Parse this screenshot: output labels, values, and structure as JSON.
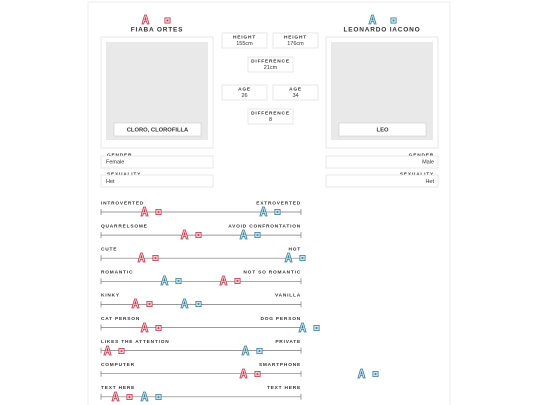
{
  "characters": [
    {
      "name": "FIABA ORTES",
      "image_caption": "CLORO, CLOROFILLA",
      "gender_label": "GENDER",
      "gender": "Female",
      "sexuality_label": "SEXUALITY",
      "sexuality": "Het"
    },
    {
      "name": "LEONARDO IACONO",
      "image_caption": "LEO",
      "gender_label": "GENDER",
      "gender": "Male",
      "sexuality_label": "SEXUALITY",
      "sexuality": "Het"
    }
  ],
  "comparison": {
    "height": [
      {
        "label": "HEIGHT",
        "value": "155cm"
      },
      {
        "label": "HEIGHT",
        "value": "176cm"
      }
    ],
    "height_difference": {
      "label": "DIFFERENCE",
      "value": "21cm"
    },
    "age": [
      {
        "label": "AGE",
        "value": "26"
      },
      {
        "label": "AGE",
        "value": "34"
      }
    ],
    "age_difference": {
      "label": "DIFFERENCE",
      "value": "8"
    }
  },
  "scales": [
    {
      "left": "INTROVERTED",
      "right": "EXTROVERTED"
    },
    {
      "left": "QUARRELSOME",
      "right": "AVOID CONFRONTATION"
    },
    {
      "left": "CUTE",
      "right": "HOT"
    },
    {
      "left": "ROMANTIC",
      "right": "NOT SO ROMANTIC"
    },
    {
      "left": "KINKY",
      "right": "VANILLA"
    },
    {
      "left": "CAT PERSON",
      "right": "DOG PERSON"
    },
    {
      "left": "LIKES THE ATTENTION",
      "right": "PRIVATE"
    },
    {
      "left": "COMPUTER",
      "right": "SMARTPHONE"
    },
    {
      "left": "TEXT HERE",
      "right": "TEXT HERE"
    }
  ]
}
